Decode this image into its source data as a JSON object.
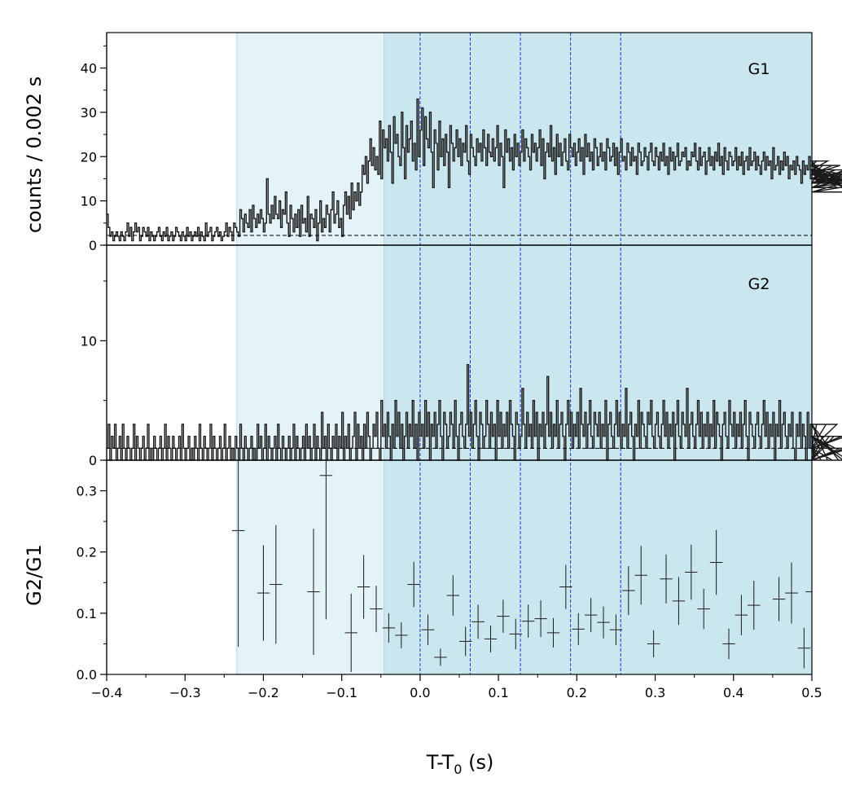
{
  "chart_data": {
    "type": "line",
    "xlabel_main": "T-T",
    "xlabel_sub": "0",
    "xlabel_unit": " (s)",
    "xlim": [
      -0.4,
      0.5
    ],
    "x_ticks": [
      -0.4,
      -0.3,
      -0.2,
      -0.1,
      0.0,
      0.1,
      0.2,
      0.3,
      0.4,
      0.5
    ],
    "x_tick_labels": [
      "−0.4",
      "−0.3",
      "−0.2",
      "−0.1",
      "0.0",
      "0.1",
      "0.2",
      "0.3",
      "0.4",
      "0.5"
    ],
    "shared_ylabel": "counts /  0.002 s",
    "colors": {
      "light_band": "#e4f3f7",
      "dark_band": "#cae6ee",
      "band_edge": "#b3d7e2",
      "dashed_vlines": "#1f37d6",
      "curve": "#1a1a1a"
    },
    "shaded_intervals": [
      {
        "from": -0.234,
        "to": -0.046,
        "shade": "light"
      },
      {
        "from": -0.046,
        "to": 0.5,
        "shade": "dark"
      }
    ],
    "vertical_lines": [
      0.0,
      0.064,
      0.128,
      0.192,
      0.256
    ],
    "panels": [
      {
        "label": "G1",
        "type": "step",
        "ylim": [
          0,
          48
        ],
        "y_ticks": [
          0,
          10,
          20,
          30,
          40
        ],
        "y_tick_labels": [
          "0",
          "10",
          "20",
          "30",
          "40"
        ],
        "bin_width": 0.002,
        "background_level": 2.2,
        "x_start": -0.4,
        "values": [
          7,
          4,
          2,
          3,
          1,
          2,
          3,
          2,
          1,
          3,
          2,
          1,
          3,
          5,
          2,
          4,
          1,
          3,
          5,
          3,
          4,
          1,
          2,
          4,
          3,
          2,
          4,
          1,
          3,
          2,
          1,
          2,
          3,
          4,
          2,
          1,
          3,
          2,
          4,
          1,
          2,
          3,
          1,
          2,
          4,
          3,
          2,
          1,
          3,
          2,
          1,
          4,
          2,
          3,
          1,
          2,
          3,
          2,
          4,
          1,
          3,
          2,
          1,
          5,
          2,
          3,
          4,
          1,
          2,
          3,
          4,
          2,
          3,
          1,
          2,
          3,
          5,
          2,
          4,
          3,
          1,
          5,
          4,
          3,
          2,
          8,
          6,
          3,
          7,
          5,
          4,
          8,
          3,
          9,
          6,
          4,
          7,
          5,
          8,
          6,
          3,
          5,
          15,
          7,
          5,
          9,
          6,
          11,
          7,
          6,
          10,
          4,
          8,
          7,
          12,
          5,
          2,
          9,
          6,
          3,
          7,
          4,
          8,
          2,
          9,
          5,
          6,
          3,
          11,
          2,
          7,
          6,
          4,
          8,
          1,
          5,
          10,
          3,
          6,
          4,
          9,
          7,
          3,
          8,
          12,
          5,
          7,
          10,
          4,
          6,
          2,
          9,
          12,
          7,
          11,
          6,
          14,
          8,
          12,
          10,
          14,
          9,
          12,
          18,
          16,
          20,
          14,
          19,
          24,
          18,
          22,
          17,
          20,
          16,
          28,
          15,
          26,
          22,
          24,
          19,
          27,
          21,
          14,
          29,
          23,
          25,
          20,
          18,
          30,
          22,
          15,
          27,
          21,
          24,
          28,
          19,
          23,
          17,
          33,
          20,
          26,
          31,
          18,
          29,
          24,
          22,
          30,
          21,
          13,
          26,
          23,
          17,
          28,
          20,
          24,
          18,
          25,
          21,
          13,
          27,
          23,
          19,
          22,
          26,
          20,
          24,
          18,
          23,
          21,
          27,
          19,
          16,
          25,
          22,
          20,
          18,
          24,
          21,
          23,
          19,
          26,
          22,
          18,
          25,
          21,
          20,
          24,
          19,
          22,
          27,
          18,
          23,
          20,
          13,
          26,
          21,
          24,
          19,
          22,
          17,
          25,
          20,
          23,
          18,
          21,
          26,
          19,
          24,
          22,
          20,
          17,
          25,
          21,
          23,
          19,
          22,
          26,
          18,
          24,
          15,
          21,
          23,
          20,
          27,
          19,
          22,
          16,
          25,
          20,
          23,
          18,
          21,
          24,
          19,
          17,
          25,
          22,
          20,
          23,
          18,
          21,
          24,
          19,
          22,
          16,
          25,
          20,
          23,
          19,
          21,
          17,
          24,
          22,
          18,
          20,
          23,
          19,
          21,
          17,
          24,
          22,
          19,
          20,
          23,
          18,
          22,
          16,
          21,
          24,
          19,
          20,
          17,
          23,
          21,
          18,
          22,
          19,
          20,
          16,
          23,
          21,
          18,
          19,
          22,
          20,
          17,
          21,
          23,
          19,
          18,
          22,
          20,
          17,
          21,
          19,
          23,
          18,
          20,
          16,
          22,
          19,
          21,
          17,
          20,
          23,
          18,
          19,
          21,
          20,
          22,
          17,
          19,
          18,
          21,
          20,
          23,
          19,
          17,
          22,
          18,
          20,
          21,
          16,
          19,
          22,
          18,
          20,
          17,
          21,
          19,
          23,
          18,
          20,
          16,
          22,
          19,
          17,
          21,
          20,
          18,
          19,
          22,
          17,
          20,
          18,
          21,
          16,
          19,
          20,
          17,
          22,
          18,
          19,
          21,
          17,
          20,
          18,
          16,
          19,
          21,
          17,
          20,
          18,
          19,
          15,
          22,
          17,
          18,
          20,
          16,
          19,
          17,
          21,
          18,
          20,
          15,
          18,
          17,
          19,
          16,
          20,
          18,
          17,
          14,
          19,
          16,
          18,
          17,
          20,
          15,
          17,
          16,
          18,
          19,
          14,
          17,
          16,
          18,
          15,
          17,
          19,
          14,
          16,
          18,
          15,
          17,
          13,
          16,
          18,
          15,
          14,
          17,
          16,
          13,
          15,
          17,
          14,
          16,
          12,
          15,
          14,
          17,
          13,
          16,
          15,
          12,
          14,
          16,
          13,
          15,
          14
        ]
      },
      {
        "label": "G2",
        "type": "step",
        "ylim": [
          0,
          18
        ],
        "y_ticks": [
          0,
          10
        ],
        "y_tick_labels": [
          "0",
          "10"
        ],
        "bin_width": 0.002,
        "background_level": 1.0,
        "x_start": -0.4,
        "values": [
          1,
          3,
          0,
          2,
          1,
          3,
          0,
          1,
          2,
          0,
          3,
          1,
          0,
          2,
          1,
          0,
          1,
          3,
          0,
          2,
          1,
          0,
          1,
          2,
          0,
          1,
          3,
          0,
          1,
          0,
          2,
          1,
          0,
          1,
          2,
          0,
          1,
          3,
          0,
          2,
          1,
          0,
          2,
          1,
          0,
          1,
          2,
          0,
          3,
          1,
          0,
          1,
          2,
          0,
          1,
          0,
          2,
          1,
          0,
          3,
          1,
          0,
          2,
          1,
          0,
          1,
          3,
          0,
          2,
          1,
          0,
          1,
          2,
          0,
          1,
          3,
          0,
          1,
          2,
          0,
          1,
          0,
          2,
          1,
          0,
          3,
          1,
          0,
          2,
          1,
          0,
          1,
          2,
          0,
          1,
          0,
          3,
          1,
          2,
          0,
          1,
          3,
          0,
          2,
          1,
          0,
          1,
          2,
          0,
          3,
          1,
          0,
          2,
          1,
          0,
          1,
          2,
          0,
          1,
          3,
          0,
          2,
          1,
          0,
          1,
          2,
          0,
          3,
          1,
          2,
          0,
          1,
          3,
          0,
          2,
          1,
          0,
          4,
          1,
          2,
          0,
          3,
          1,
          0,
          2,
          1,
          3,
          0,
          2,
          1,
          4,
          0,
          2,
          1,
          3,
          0,
          1,
          2,
          4,
          0,
          3,
          1,
          2,
          0,
          3,
          1,
          4,
          2,
          0,
          1,
          3,
          2,
          4,
          1,
          0,
          5,
          2,
          3,
          1,
          4,
          2,
          0,
          3,
          1,
          5,
          2,
          4,
          1,
          3,
          0,
          2,
          4,
          1,
          3,
          2,
          5,
          1,
          3,
          0,
          4,
          2,
          3,
          1,
          5,
          2,
          4,
          0,
          3,
          2,
          4,
          1,
          3,
          5,
          2,
          0,
          4,
          3,
          1,
          2,
          4,
          3,
          1,
          5,
          2,
          0,
          3,
          4,
          2,
          1,
          3,
          8,
          2,
          4,
          1,
          3,
          5,
          2,
          0,
          4,
          3,
          1,
          2,
          5,
          3,
          1,
          4,
          2,
          3,
          0,
          5,
          2,
          4,
          1,
          3,
          2,
          4,
          1,
          5,
          3,
          2,
          0,
          4,
          3,
          1,
          2,
          6,
          3,
          1,
          4,
          2,
          3,
          1,
          5,
          2,
          4,
          0,
          3,
          2,
          4,
          1,
          3,
          7,
          2,
          4,
          1,
          3,
          2,
          5,
          1,
          3,
          4,
          2,
          0,
          3,
          5,
          2,
          4,
          1,
          3,
          2,
          4,
          1,
          6,
          3,
          2,
          4,
          1,
          3,
          5,
          2,
          1,
          4,
          3,
          2,
          4,
          1,
          3,
          2,
          5,
          0,
          3,
          4,
          2,
          1,
          3,
          5,
          2,
          4,
          1,
          3,
          2,
          6,
          1,
          3,
          4,
          2,
          0,
          3,
          2,
          5,
          1,
          4,
          3,
          2,
          1,
          4,
          3,
          5,
          2,
          1,
          3,
          4,
          2,
          1,
          3,
          5,
          2,
          4,
          1,
          3,
          2,
          4,
          0,
          3,
          5,
          2,
          1,
          4,
          3,
          2,
          6,
          1,
          3,
          4,
          2,
          1,
          3,
          5,
          2,
          4,
          1,
          3,
          2,
          4,
          1,
          3,
          2,
          5,
          1,
          4,
          3,
          2,
          0,
          3,
          4,
          2,
          1,
          5,
          3,
          2,
          4,
          1,
          3,
          2,
          4,
          1,
          3,
          5,
          2,
          0,
          4,
          3,
          2,
          1,
          3,
          4,
          2,
          1,
          3,
          5,
          2,
          4,
          1,
          3,
          2,
          4,
          0,
          3,
          2,
          5,
          1,
          3,
          4,
          2,
          1,
          3,
          2,
          4,
          1,
          0,
          3,
          2,
          4,
          1,
          3,
          2,
          0,
          4,
          1,
          3,
          2,
          0,
          1,
          3,
          2,
          1,
          0,
          2,
          1,
          3,
          0,
          2,
          1,
          0,
          2,
          1,
          3,
          0,
          1,
          2,
          0,
          1,
          2,
          0,
          1
        ]
      },
      {
        "label": "",
        "type": "errorbar",
        "ylabel": "G2/G1",
        "ylim": [
          0,
          0.35
        ],
        "y_ticks": [
          0.0,
          0.1,
          0.2,
          0.3
        ],
        "y_tick_labels": [
          "0.0",
          "0.1",
          "0.2",
          "0.3"
        ],
        "x_halfwidth": 0.008,
        "points": [
          {
            "x": -0.232,
            "y": 0.235,
            "yerr": 0.19
          },
          {
            "x": -0.2,
            "y": 0.133,
            "yerr": 0.078
          },
          {
            "x": -0.184,
            "y": 0.147,
            "yerr": 0.097
          },
          {
            "x": -0.136,
            "y": 0.135,
            "yerr": 0.103
          },
          {
            "x": -0.12,
            "y": 0.325,
            "yerr": 0.235
          },
          {
            "x": -0.088,
            "y": 0.068,
            "yerr": 0.064
          },
          {
            "x": -0.072,
            "y": 0.143,
            "yerr": 0.052
          },
          {
            "x": -0.056,
            "y": 0.107,
            "yerr": 0.038
          },
          {
            "x": -0.04,
            "y": 0.076,
            "yerr": 0.024
          },
          {
            "x": -0.024,
            "y": 0.064,
            "yerr": 0.021
          },
          {
            "x": -0.008,
            "y": 0.147,
            "yerr": 0.037
          },
          {
            "x": 0.01,
            "y": 0.073,
            "yerr": 0.025
          },
          {
            "x": 0.026,
            "y": 0.028,
            "yerr": 0.014
          },
          {
            "x": 0.042,
            "y": 0.129,
            "yerr": 0.033
          },
          {
            "x": 0.058,
            "y": 0.054,
            "yerr": 0.024
          },
          {
            "x": 0.074,
            "y": 0.086,
            "yerr": 0.028
          },
          {
            "x": 0.09,
            "y": 0.058,
            "yerr": 0.022
          },
          {
            "x": 0.106,
            "y": 0.095,
            "yerr": 0.027
          },
          {
            "x": 0.122,
            "y": 0.066,
            "yerr": 0.025
          },
          {
            "x": 0.138,
            "y": 0.087,
            "yerr": 0.027
          },
          {
            "x": 0.154,
            "y": 0.091,
            "yerr": 0.03
          },
          {
            "x": 0.17,
            "y": 0.068,
            "yerr": 0.024
          },
          {
            "x": 0.186,
            "y": 0.143,
            "yerr": 0.036
          },
          {
            "x": 0.202,
            "y": 0.074,
            "yerr": 0.026
          },
          {
            "x": 0.218,
            "y": 0.097,
            "yerr": 0.028
          },
          {
            "x": 0.234,
            "y": 0.085,
            "yerr": 0.026
          },
          {
            "x": 0.25,
            "y": 0.073,
            "yerr": 0.025
          },
          {
            "x": 0.266,
            "y": 0.137,
            "yerr": 0.04
          },
          {
            "x": 0.282,
            "y": 0.162,
            "yerr": 0.048
          },
          {
            "x": 0.298,
            "y": 0.05,
            "yerr": 0.022
          },
          {
            "x": 0.314,
            "y": 0.156,
            "yerr": 0.04
          },
          {
            "x": 0.33,
            "y": 0.12,
            "yerr": 0.039
          },
          {
            "x": 0.346,
            "y": 0.167,
            "yerr": 0.045
          },
          {
            "x": 0.362,
            "y": 0.107,
            "yerr": 0.033
          },
          {
            "x": 0.378,
            "y": 0.183,
            "yerr": 0.053
          },
          {
            "x": 0.394,
            "y": 0.05,
            "yerr": 0.025
          },
          {
            "x": 0.41,
            "y": 0.097,
            "yerr": 0.033
          },
          {
            "x": 0.426,
            "y": 0.113,
            "yerr": 0.04
          },
          {
            "x": 0.458,
            "y": 0.123,
            "yerr": 0.036
          },
          {
            "x": 0.474,
            "y": 0.133,
            "yerr": 0.05
          },
          {
            "x": 0.49,
            "y": 0.043,
            "yerr": 0.033
          },
          {
            "x": 0.5,
            "y": 0.135,
            "yerr": 0.045
          }
        ]
      }
    ]
  }
}
